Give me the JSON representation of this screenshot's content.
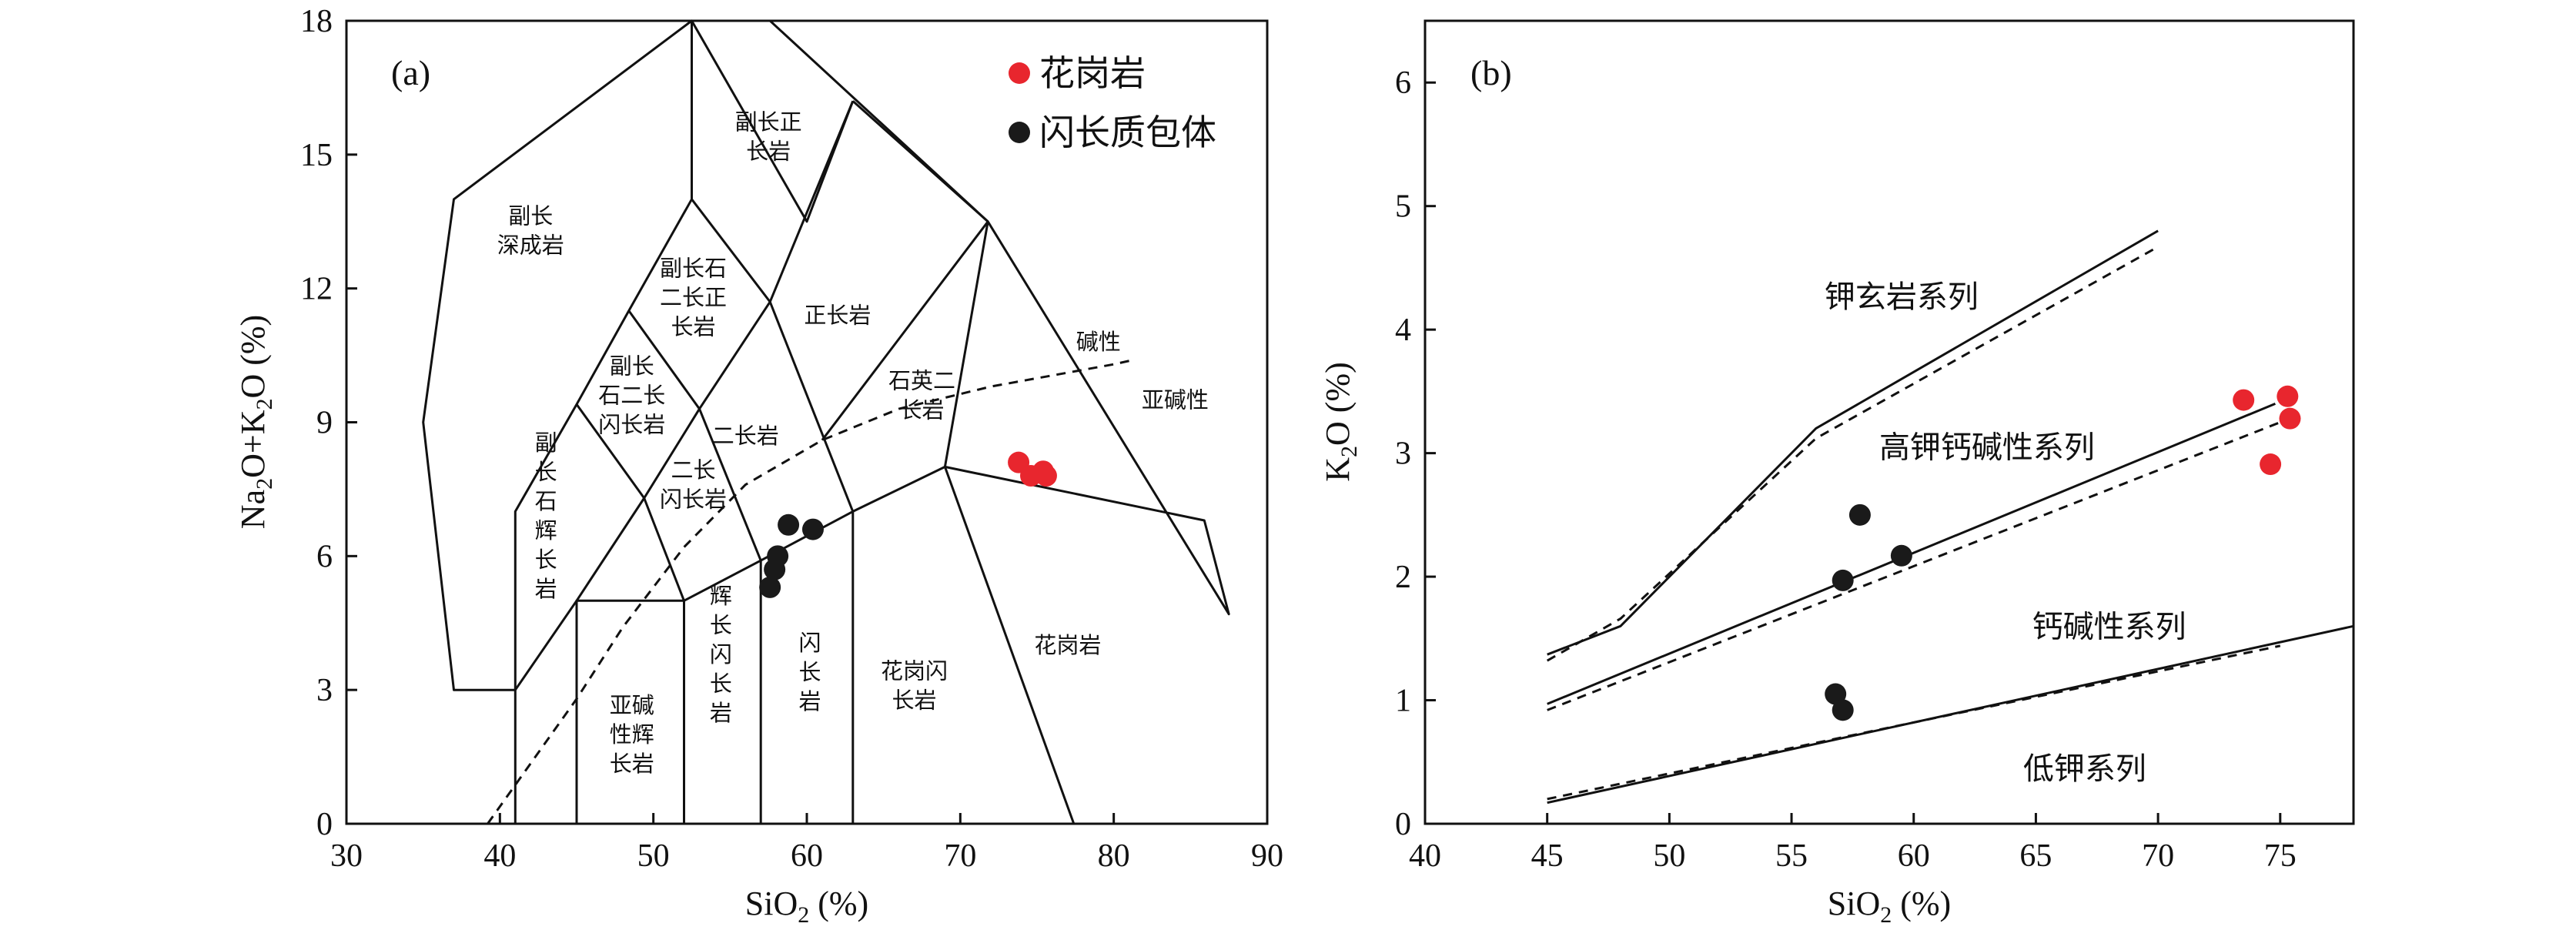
{
  "chart_data": [
    {
      "type": "scatter",
      "panel_label": "(a)",
      "title": "",
      "xlabel": "SiO",
      "xlabel_sub": "2",
      "xlabel_unit": " (%)",
      "ylabel": {
        "p1": "Na",
        "s1": "2",
        "p2": "O+K",
        "s2": "2",
        "p3": "O (%)"
      },
      "xlim": [
        30,
        90
      ],
      "ylim": [
        0,
        18
      ],
      "xticks": [
        "30",
        "40",
        "50",
        "60",
        "70",
        "80",
        "90"
      ],
      "yticks": [
        "0",
        "3",
        "6",
        "9",
        "12",
        "15",
        "18"
      ],
      "xtick_values": [
        30,
        40,
        50,
        60,
        70,
        80,
        90
      ],
      "ytick_values": [
        0,
        3,
        6,
        9,
        12,
        15,
        18
      ],
      "boundaries": [
        [
          [
            41,
            0
          ],
          [
            41,
            7
          ],
          [
            45,
            9.4
          ],
          [
            48.4,
            11.5
          ],
          [
            52.5,
            14
          ],
          [
            57.6,
            11.7
          ],
          [
            63,
            16.2
          ]
        ],
        [
          [
            45,
            0
          ],
          [
            45,
            5
          ],
          [
            52,
            5
          ],
          [
            57,
            5.9
          ],
          [
            63,
            7
          ],
          [
            69,
            8
          ],
          [
            77.4,
            0
          ]
        ],
        [
          [
            52,
            0
          ],
          [
            52,
            5
          ],
          [
            49.4,
            7.3
          ],
          [
            45,
            9.4
          ]
        ],
        [
          [
            57,
            0
          ],
          [
            57,
            5.9
          ],
          [
            53,
            9.3
          ],
          [
            48.4,
            11.5
          ]
        ],
        [
          [
            63,
            0
          ],
          [
            63,
            7
          ],
          [
            57.6,
            11.7
          ],
          [
            53,
            9.3
          ],
          [
            49.4,
            7.3
          ],
          [
            45,
            5
          ],
          [
            41,
            3
          ],
          [
            37,
            3
          ],
          [
            35,
            9
          ],
          [
            37,
            14
          ],
          [
            52.5,
            18
          ],
          [
            60,
            13.5
          ],
          [
            63,
            16.2
          ]
        ],
        [
          [
            52.5,
            18
          ],
          [
            52.5,
            14
          ]
        ],
        [
          [
            63,
            16.2
          ],
          [
            71.8,
            13.5
          ],
          [
            87.5,
            4.7
          ],
          [
            85.9,
            6.8
          ],
          [
            69,
            8
          ],
          [
            71.8,
            13.5
          ],
          [
            61,
            8.6
          ]
        ],
        [
          [
            52.5,
            18
          ],
          [
            57.6,
            18
          ],
          [
            71.8,
            13.5
          ]
        ]
      ],
      "alkaline_line": [
        [
          39.2,
          0
        ],
        [
          45,
          2.8
        ],
        [
          48,
          4.4
        ],
        [
          52,
          6.2
        ],
        [
          56,
          7.6
        ],
        [
          61,
          8.6
        ],
        [
          66,
          9.3
        ],
        [
          72,
          9.8
        ],
        [
          80,
          10.3
        ],
        [
          81.3,
          10.4
        ]
      ],
      "field_labels": [
        {
          "lines": [
            "副长",
            "深成岩"
          ],
          "x": 42,
          "y": 13.3
        },
        {
          "lines": [
            "副长正",
            "长岩"
          ],
          "x": 57.5,
          "y": 15.4
        },
        {
          "lines": [
            "副长石",
            "二长正",
            "长岩"
          ],
          "x": 52.6,
          "y": 11.8
        },
        {
          "lines": [
            "正长岩"
          ],
          "x": 62,
          "y": 11.4
        },
        {
          "lines": [
            "副长",
            "石二长",
            "闪长岩"
          ],
          "x": 48.6,
          "y": 9.6
        },
        {
          "lines": [
            "二长岩"
          ],
          "x": 56,
          "y": 8.7
        },
        {
          "lines": [
            "石英二",
            "长岩"
          ],
          "x": 67.5,
          "y": 9.6
        },
        {
          "lines": [
            "碱性"
          ],
          "x": 79,
          "y": 10.8
        },
        {
          "lines": [
            "亚碱性"
          ],
          "x": 84,
          "y": 9.5
        },
        {
          "lines": [
            "二长",
            "闪长岩"
          ],
          "x": 52.6,
          "y": 7.6
        },
        {
          "lines": [
            "副",
            "长",
            "石",
            "辉",
            "长",
            "岩"
          ],
          "x": 43,
          "y": 6.9
        },
        {
          "lines": [
            "辉",
            "长",
            "闪",
            "长",
            "岩"
          ],
          "x": 54.4,
          "y": 3.8
        },
        {
          "lines": [
            "闪",
            "长",
            "岩"
          ],
          "x": 60.2,
          "y": 3.4
        },
        {
          "lines": [
            "花岗闪",
            "长岩"
          ],
          "x": 67,
          "y": 3.1
        },
        {
          "lines": [
            "花岗岩"
          ],
          "x": 77,
          "y": 4.0
        },
        {
          "lines": [
            "亚碱",
            "性辉",
            "长岩"
          ],
          "x": 48.6,
          "y": 2.0
        }
      ],
      "series": [
        {
          "name": "花岗岩",
          "color": "#e8262e",
          "points": [
            [
              73.8,
              8.1
            ],
            [
              74.6,
              7.8
            ],
            [
              75.4,
              7.9
            ],
            [
              75.6,
              7.8
            ]
          ]
        },
        {
          "name": "闪长质包体",
          "color": "#1a1a1a",
          "points": [
            [
              57.6,
              5.3
            ],
            [
              57.9,
              5.7
            ],
            [
              58.1,
              6.0
            ],
            [
              58.8,
              6.7
            ],
            [
              60.4,
              6.6
            ]
          ]
        }
      ],
      "legend": {
        "position": "top-right",
        "entries": [
          "花岗岩",
          "闪长质包体"
        ]
      }
    },
    {
      "type": "scatter",
      "panel_label": "(b)",
      "title": "",
      "xlabel": "SiO",
      "xlabel_sub": "2",
      "xlabel_unit": " (%)",
      "ylabel": {
        "p1": "K",
        "s1": "2",
        "p2": "O (%)"
      },
      "xlim": [
        40,
        78
      ],
      "ylim": [
        0,
        6.5
      ],
      "xticks": [
        "40",
        "45",
        "50",
        "55",
        "60",
        "65",
        "70",
        "75"
      ],
      "yticks": [
        "0",
        "1",
        "2",
        "3",
        "4",
        "5",
        "6"
      ],
      "xtick_values": [
        40,
        45,
        50,
        55,
        60,
        65,
        70,
        75
      ],
      "ytick_values": [
        0,
        1,
        2,
        3,
        4,
        5,
        6
      ],
      "solid_lines": [
        [
          [
            45,
            1.37
          ],
          [
            48,
            1.6
          ],
          [
            56,
            3.2
          ],
          [
            70,
            4.8
          ]
        ],
        [
          [
            45,
            0.97
          ],
          [
            74.8,
            3.4
          ]
        ],
        [
          [
            45,
            0.17
          ],
          [
            78,
            1.6
          ]
        ]
      ],
      "dashed_lines": [
        [
          [
            45,
            1.32
          ],
          [
            48,
            1.66
          ],
          [
            56,
            3.12
          ],
          [
            70,
            4.67
          ]
        ],
        [
          [
            45,
            0.92
          ],
          [
            75,
            3.25
          ]
        ],
        [
          [
            45,
            0.2
          ],
          [
            75,
            1.44
          ]
        ]
      ],
      "series_labels": [
        {
          "text": "钾玄岩系列",
          "x": 59.5,
          "y": 4.27
        },
        {
          "text": "高钾钙碱性系列",
          "x": 63,
          "y": 3.05
        },
        {
          "text": "钙碱性系列",
          "x": 68,
          "y": 1.6
        },
        {
          "text": "低钾系列",
          "x": 67,
          "y": 0.45
        }
      ],
      "series": [
        {
          "name": "花岗岩",
          "color": "#e8262e",
          "points": [
            [
              73.5,
              3.43
            ],
            [
              75.3,
              3.46
            ],
            [
              75.4,
              3.28
            ],
            [
              74.6,
              2.91
            ]
          ]
        },
        {
          "name": "闪长质包体",
          "color": "#1a1a1a",
          "points": [
            [
              57.8,
              2.5
            ],
            [
              59.5,
              2.17
            ],
            [
              57.1,
              1.97
            ],
            [
              56.8,
              1.05
            ],
            [
              57.1,
              0.92
            ]
          ]
        }
      ]
    }
  ]
}
